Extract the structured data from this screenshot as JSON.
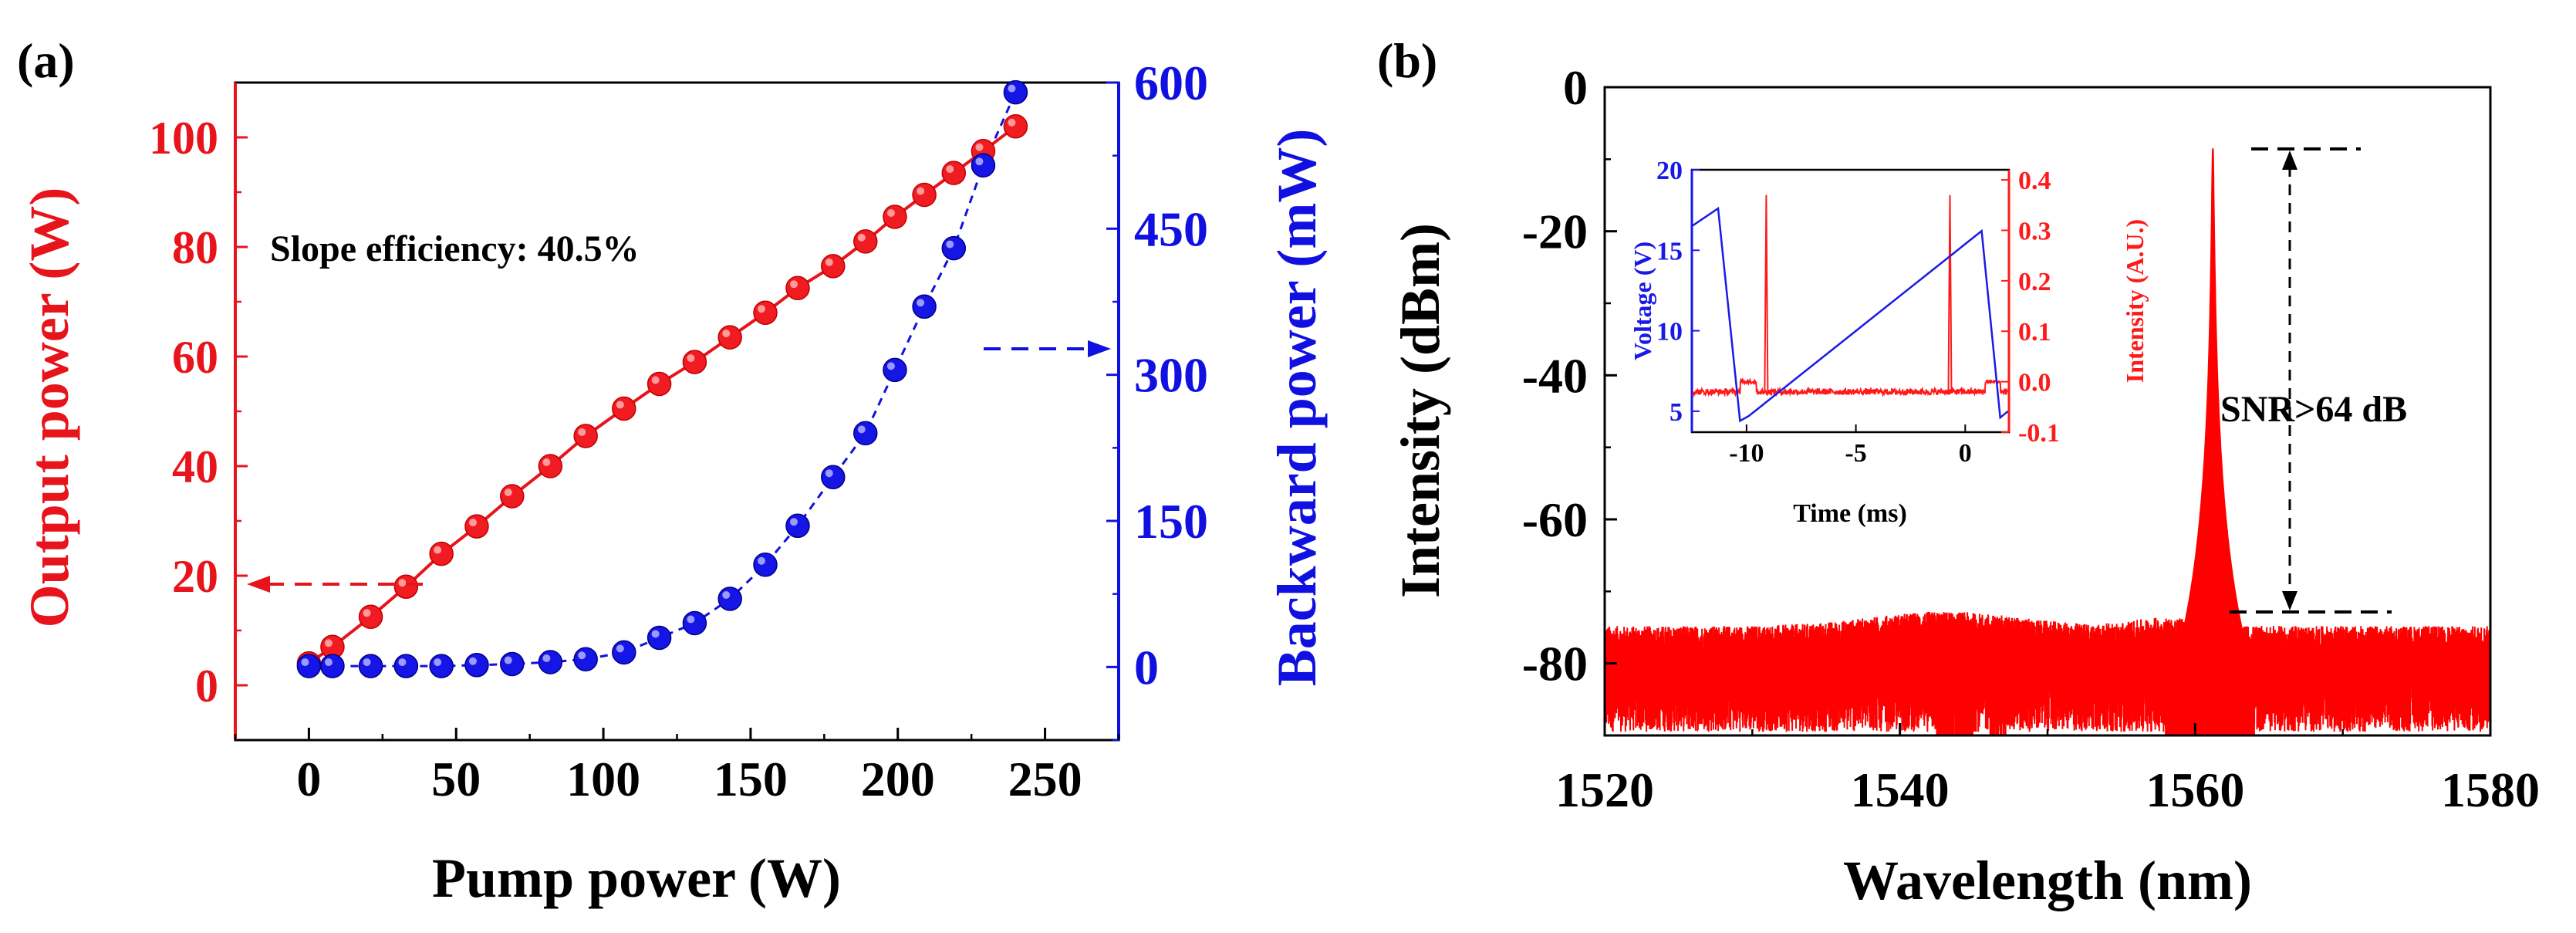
{
  "chart_data": [
    {
      "panel_label": "(a)",
      "type": "scatter",
      "xlabel": "Pump power",
      "xunit": "(W)",
      "xlim": [
        -25,
        275
      ],
      "xticks": [
        0,
        50,
        100,
        150,
        200,
        250
      ],
      "ylabel_left": "Output power (W)",
      "ylim_left": [
        -10,
        110
      ],
      "yticks_left": [
        0,
        20,
        40,
        60,
        80,
        100
      ],
      "ylabel_right": "Backward power (mW)",
      "ylim_right": [
        -75,
        600
      ],
      "yticks_right": [
        0,
        150,
        300,
        450,
        600
      ],
      "annotation": "Slope efficiency: 40.5%",
      "colors": {
        "left": "#e8141b",
        "right": "#1010e0",
        "axis": "#000000"
      },
      "series": [
        {
          "name": "Output power",
          "axis": "left",
          "color": "#e8141b",
          "x": [
            0,
            8,
            21,
            33,
            45,
            57,
            69,
            82,
            94,
            107,
            119,
            131,
            143,
            155,
            166,
            178,
            189,
            199,
            209,
            219,
            229,
            240
          ],
          "y": [
            4,
            7,
            12.5,
            18,
            24,
            29,
            34.5,
            40,
            45.5,
            50.5,
            55,
            59,
            63.5,
            68,
            72.5,
            76.5,
            81,
            85.5,
            89.5,
            93.5,
            97.5,
            102
          ]
        },
        {
          "name": "Backward power",
          "axis": "right",
          "color": "#1010e0",
          "x": [
            0,
            8,
            21,
            33,
            45,
            57,
            69,
            82,
            94,
            107,
            119,
            131,
            143,
            155,
            166,
            178,
            189,
            199,
            209,
            219,
            229,
            240
          ],
          "y": [
            1,
            1,
            1,
            1,
            1,
            2,
            3,
            5,
            8,
            15,
            30,
            45,
            70,
            105,
            145,
            195,
            240,
            305,
            370,
            430,
            515,
            590
          ]
        }
      ]
    },
    {
      "panel_label": "(b)",
      "type": "line",
      "xlabel": "Wavelength (nm)",
      "ylabel": "Intensity (dBm)",
      "xlim": [
        1520,
        1580
      ],
      "ylim": [
        -90,
        0
      ],
      "xticks": [
        1520,
        1540,
        1560,
        1580
      ],
      "yticks": [
        0,
        -20,
        -40,
        -60,
        -80
      ],
      "peak_wavelength": 1561.2,
      "peak_level": -8.5,
      "noise_floor": -73,
      "annotation": "SNR>64 dB",
      "color": "#ff0000",
      "inset": {
        "xlabel": "Time (ms)",
        "ylabel_left": "Voltage (V)",
        "ylabel_right": "Intensity (A.U.)",
        "xlim": [
          -12.5,
          2
        ],
        "xticks": [
          -10,
          -5,
          0
        ],
        "ylim_left": [
          3.7,
          20
        ],
        "yticks_left": [
          5,
          10,
          15,
          20
        ],
        "ylim_right": [
          -0.1,
          0.42
        ],
        "yticks_right": [
          0.4,
          0.3,
          0.2,
          0.1,
          0.0,
          -0.1
        ],
        "ytick_labels_right": [
          "0.4",
          "0.3",
          "0.2",
          "0.1",
          "0.0",
          "-0.1"
        ],
        "voltage_color": "#1a1ae6",
        "intensity_color": "#ff1a1a",
        "voltage_t": [
          -12.5,
          -11.3,
          -10.3,
          -9.9,
          0.75,
          1.6,
          1.95
        ],
        "voltage_v": [
          16.5,
          17.6,
          4.4,
          4.7,
          16.2,
          4.6,
          5.0
        ],
        "pulse_times": [
          -9.1,
          -0.7
        ],
        "pulse_peak": 0.37
      }
    }
  ]
}
